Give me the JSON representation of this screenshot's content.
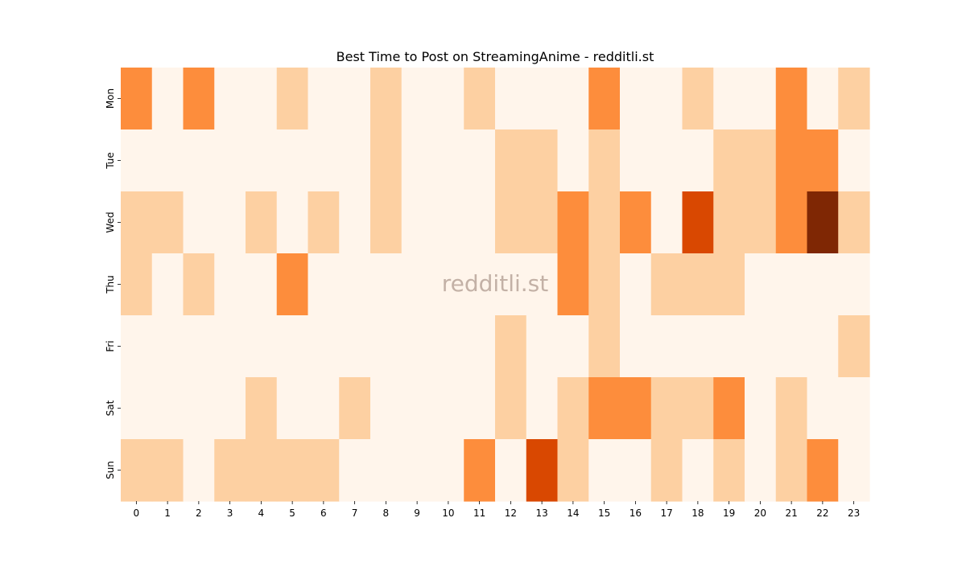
{
  "chart_data": {
    "type": "heatmap",
    "title": "Best Time to Post on StreamingAnime - redditli.st",
    "xlabel": "",
    "ylabel": "",
    "x_labels": [
      "0",
      "1",
      "2",
      "3",
      "4",
      "5",
      "6",
      "7",
      "8",
      "9",
      "10",
      "11",
      "12",
      "13",
      "14",
      "15",
      "16",
      "17",
      "18",
      "19",
      "20",
      "21",
      "22",
      "23"
    ],
    "y_labels": [
      "Mon",
      "Tue",
      "Wed",
      "Thu",
      "Fri",
      "Sat",
      "Sun"
    ],
    "values": [
      [
        2,
        0,
        2,
        0,
        0,
        1,
        0,
        0,
        1,
        0,
        0,
        1,
        0,
        0,
        0,
        2,
        0,
        0,
        1,
        0,
        0,
        2,
        0,
        1
      ],
      [
        0,
        0,
        0,
        0,
        0,
        0,
        0,
        0,
        1,
        0,
        0,
        0,
        1,
        1,
        0,
        1,
        0,
        0,
        0,
        1,
        1,
        2,
        2,
        0
      ],
      [
        1,
        1,
        0,
        0,
        1,
        0,
        1,
        0,
        1,
        0,
        0,
        0,
        1,
        1,
        2,
        1,
        2,
        0,
        3,
        1,
        1,
        2,
        4,
        1
      ],
      [
        1,
        0,
        1,
        0,
        0,
        2,
        0,
        0,
        0,
        0,
        0,
        0,
        0,
        0,
        2,
        1,
        0,
        1,
        1,
        1,
        0,
        0,
        0,
        0
      ],
      [
        0,
        0,
        0,
        0,
        0,
        0,
        0,
        0,
        0,
        0,
        0,
        0,
        1,
        0,
        0,
        1,
        0,
        0,
        0,
        0,
        0,
        0,
        0,
        1
      ],
      [
        0,
        0,
        0,
        0,
        1,
        0,
        0,
        1,
        0,
        0,
        0,
        0,
        1,
        0,
        1,
        2,
        2,
        1,
        1,
        2,
        0,
        1,
        0,
        0
      ],
      [
        1,
        1,
        0,
        1,
        1,
        1,
        1,
        0,
        0,
        0,
        0,
        2,
        0,
        3,
        1,
        0,
        0,
        1,
        0,
        1,
        0,
        1,
        2,
        0
      ]
    ],
    "value_range": [
      0,
      4
    ],
    "colormap": [
      "#fff5eb",
      "#fdd0a2",
      "#fd8d3c",
      "#d94801",
      "#7f2704"
    ],
    "colorbar": false,
    "grid": false,
    "watermark": "redditli.st"
  }
}
